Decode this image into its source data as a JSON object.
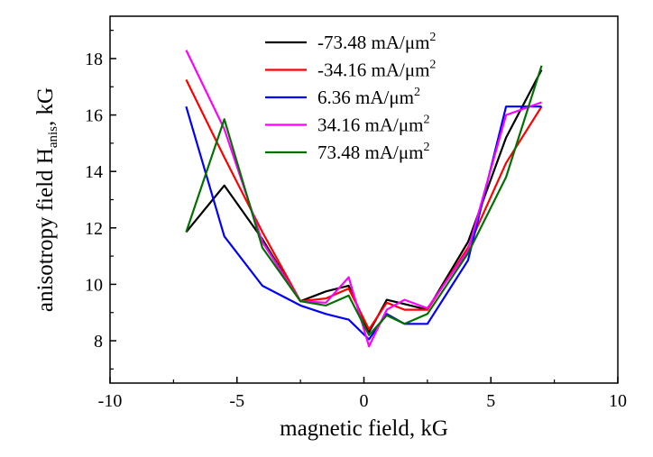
{
  "chart_data": {
    "type": "line",
    "xlabel": "magnetic field, kG",
    "ylabel": "anisotropy field H",
    "ylabel_sub": "anis",
    "ylabel_tail": ", kG",
    "xlim": [
      -10,
      10
    ],
    "ylim": [
      6.5,
      19.5
    ],
    "xticks": [
      -10,
      -5,
      0,
      5,
      10
    ],
    "yticks": [
      8,
      10,
      12,
      14,
      16,
      18
    ],
    "grid": false,
    "legend_position": "top-center",
    "series": [
      {
        "name": "-73.48 mA/μm",
        "sup": "2",
        "color": "#000000",
        "x": [
          -7,
          -5.5,
          -4,
          -2.5,
          -1.5,
          -0.6,
          0.2,
          0.9,
          1.6,
          2.5,
          4.1,
          5.6,
          7
        ],
        "y": [
          11.85,
          13.5,
          11.6,
          9.4,
          9.75,
          9.95,
          8.3,
          9.45,
          9.3,
          9.1,
          11.5,
          15.2,
          17.6
        ]
      },
      {
        "name": "-34.16 mA/μm",
        "sup": "2",
        "color": "#ff0000",
        "x": [
          -7,
          -5.5,
          -4,
          -2.5,
          -1.5,
          -0.6,
          0.2,
          0.9,
          1.6,
          2.5,
          4.1,
          5.6,
          7
        ],
        "y": [
          17.25,
          14.5,
          11.85,
          9.4,
          9.5,
          9.85,
          8.4,
          9.35,
          9.1,
          9.1,
          11.3,
          14.3,
          16.3
        ]
      },
      {
        "name": "6.36 mA/μm",
        "sup": "2",
        "color": "#0000ff",
        "x": [
          -7,
          -5.5,
          -4,
          -2.5,
          -1.5,
          -0.6,
          0.2,
          0.9,
          1.6,
          2.5,
          4.1,
          5.6,
          7
        ],
        "y": [
          16.3,
          11.7,
          9.95,
          9.25,
          8.95,
          8.75,
          8.05,
          8.95,
          8.6,
          8.6,
          10.85,
          16.3,
          16.3
        ]
      },
      {
        "name": "34.16 mA/μm",
        "sup": "2",
        "color": "#ff00ff",
        "x": [
          -7,
          -5.5,
          -4,
          -2.5,
          -1.5,
          -0.6,
          0.2,
          0.9,
          1.6,
          2.5,
          4.1,
          5.6,
          7
        ],
        "y": [
          18.3,
          15.5,
          11.5,
          9.4,
          9.35,
          10.25,
          7.8,
          9.1,
          9.45,
          9.15,
          11.2,
          16.0,
          16.45
        ]
      },
      {
        "name": "73.48 mA/μm",
        "sup": "2",
        "color": "#007000",
        "x": [
          -7,
          -5.5,
          -4,
          -2.5,
          -1.5,
          -0.6,
          0.2,
          0.9,
          1.6,
          2.5,
          4.1,
          5.6,
          7
        ],
        "y": [
          11.85,
          15.85,
          11.3,
          9.4,
          9.25,
          9.6,
          8.2,
          8.9,
          8.6,
          8.95,
          11.1,
          13.8,
          17.75
        ]
      }
    ]
  }
}
